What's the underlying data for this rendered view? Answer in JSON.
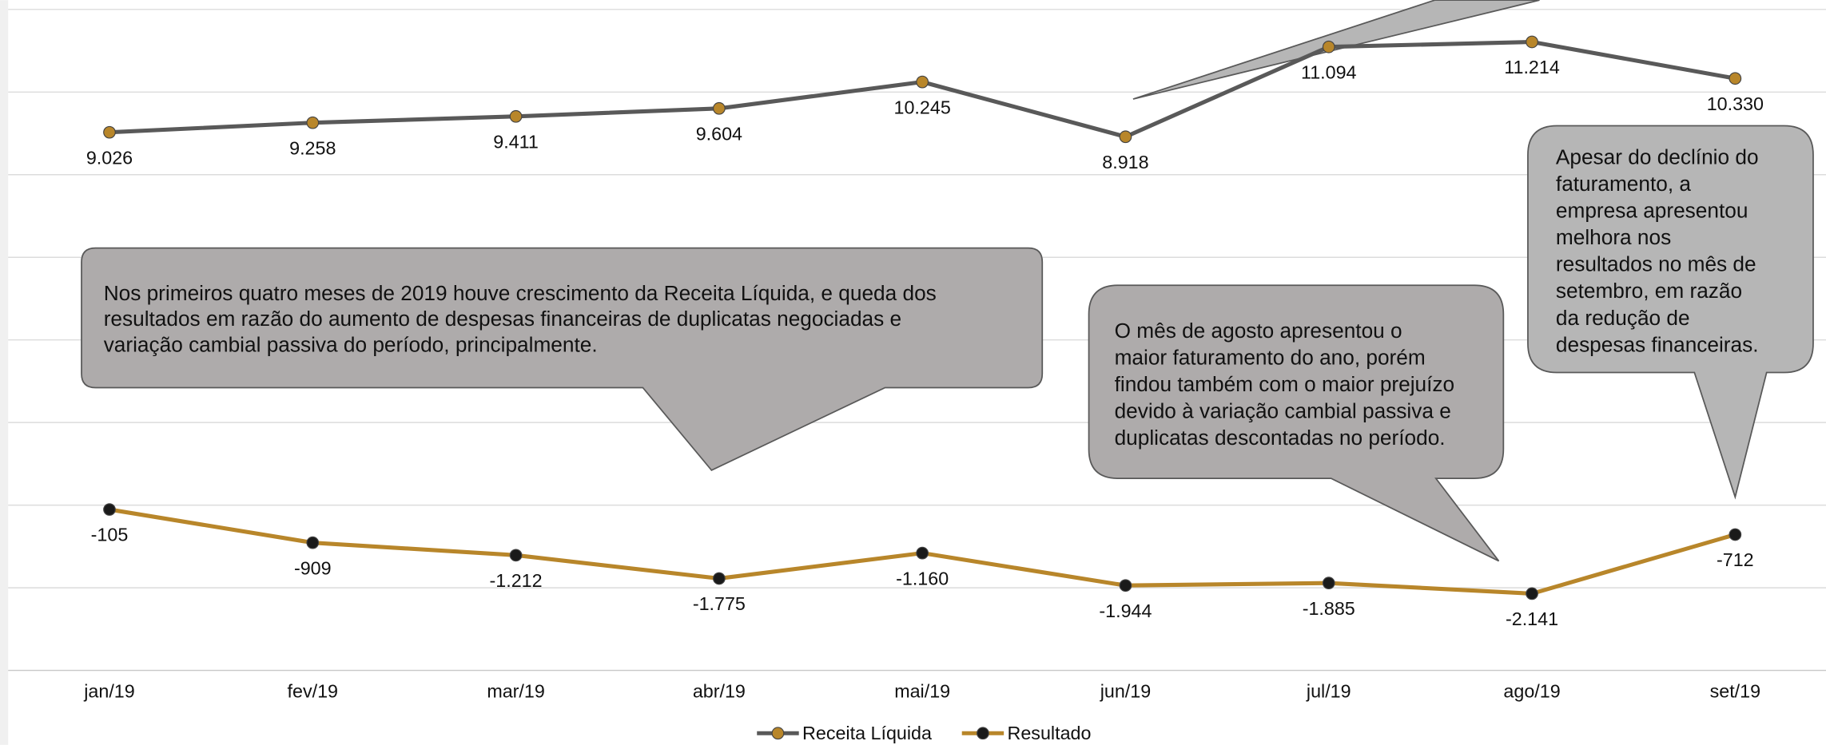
{
  "chart_data": {
    "type": "line",
    "categories": [
      "jan/19",
      "fev/19",
      "mar/19",
      "abr/19",
      "mai/19",
      "jun/19",
      "jul/19",
      "ago/19",
      "set/19"
    ],
    "series": [
      {
        "name": "Receita Líquida",
        "color": "#595959",
        "marker_color": "#b8862a",
        "values": [
          9026,
          9258,
          9411,
          9604,
          10245,
          8918,
          11094,
          11214,
          10330
        ],
        "value_labels": [
          "9.026",
          "9.258",
          "9.411",
          "9.604",
          "10.245",
          "8.918",
          "11.094",
          "11.214",
          "10.330"
        ]
      },
      {
        "name": "Resultado",
        "color": "#b8862a",
        "marker_color": "#1a1a1a",
        "values": [
          -105,
          -909,
          -1212,
          -1775,
          -1160,
          -1944,
          -1885,
          -2141,
          -712
        ],
        "value_labels": [
          "-105",
          "-909",
          "-1.212",
          "-1.775",
          "-1.160",
          "-1.944",
          "-1.885",
          "-2.141",
          "-712"
        ]
      }
    ],
    "ylim": [
      -4000,
      12000
    ],
    "yticks": [
      -4000,
      -2000,
      0,
      2000,
      4000,
      6000,
      8000,
      10000,
      12000
    ],
    "grid": true,
    "legend": "bottom",
    "annotations": [
      {
        "lines": [
          "Nos primeiros quatro meses de 2019 houve crescimento da Receita Líquida, e queda dos",
          "resultados em razão do aumento de despesas financeiras de duplicatas negociadas e",
          "variação cambial passiva do período, principalmente."
        ]
      },
      {
        "lines": [
          "O mês de agosto apresentou o",
          "maior faturamento do ano, porém",
          "findou também com o maior prejuízo",
          "devido à variação cambial passiva e",
          "duplicatas descontadas no período."
        ]
      },
      {
        "lines": [
          "Apesar do declínio do",
          "faturamento, a",
          "empresa apresentou",
          "melhora nos",
          "resultados no mês de",
          "setembro, em razão",
          "da redução de",
          "despesas financeiras."
        ]
      }
    ]
  }
}
